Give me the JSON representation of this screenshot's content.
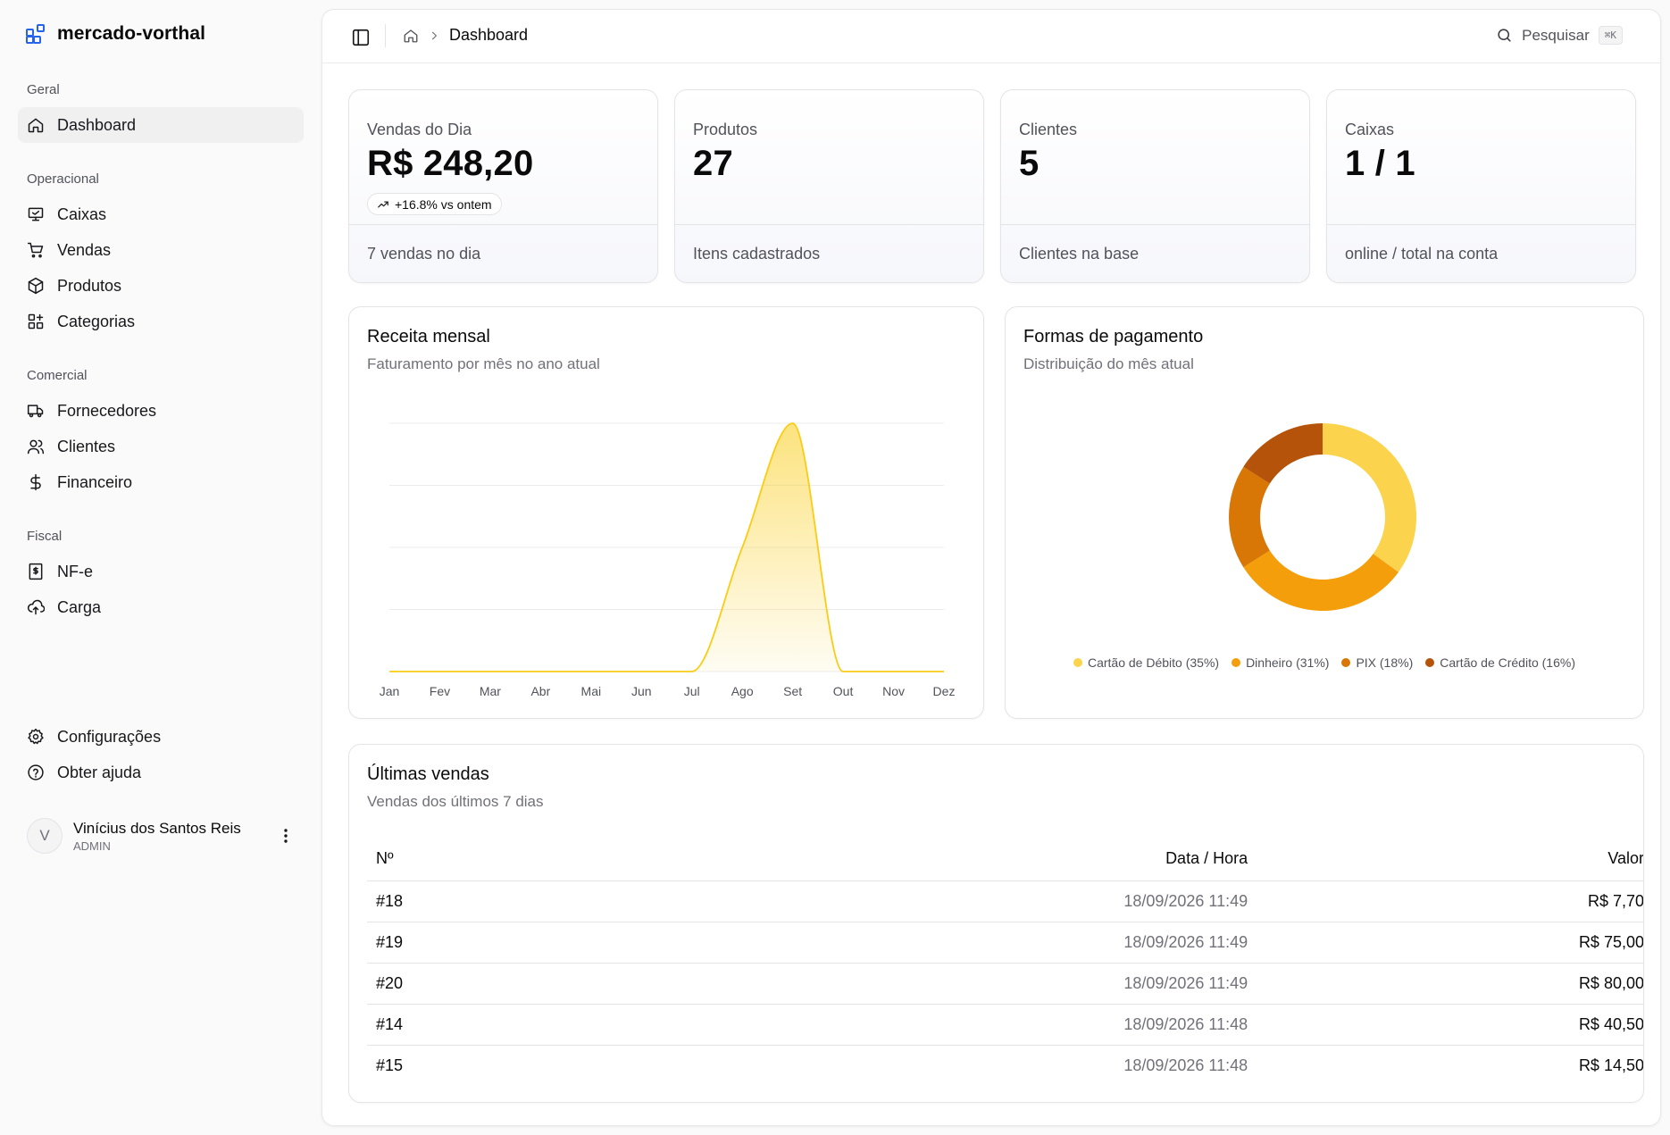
{
  "brand": {
    "name": "mercado-vorthal"
  },
  "sidebar": {
    "groups": [
      {
        "label": "Geral",
        "items": [
          {
            "label": "Dashboard",
            "icon": "home-icon"
          }
        ]
      },
      {
        "label": "Operacional",
        "items": [
          {
            "label": "Caixas",
            "icon": "monitor-icon"
          },
          {
            "label": "Vendas",
            "icon": "cart-icon"
          },
          {
            "label": "Produtos",
            "icon": "box-icon"
          },
          {
            "label": "Categorias",
            "icon": "grid-plus-icon"
          }
        ]
      },
      {
        "label": "Comercial",
        "items": [
          {
            "label": "Fornecedores",
            "icon": "truck-icon"
          },
          {
            "label": "Clientes",
            "icon": "users-icon"
          },
          {
            "label": "Financeiro",
            "icon": "dollar-icon"
          }
        ]
      },
      {
        "label": "Fiscal",
        "items": [
          {
            "label": "NF-e",
            "icon": "receipt-icon"
          },
          {
            "label": "Carga",
            "icon": "cloud-upload-icon"
          }
        ]
      }
    ],
    "footer_items": [
      {
        "label": "Configurações",
        "icon": "gear-icon"
      },
      {
        "label": "Obter ajuda",
        "icon": "help-circle-icon"
      }
    ],
    "user": {
      "initial": "V",
      "name": "Vinícius dos Santos Reis",
      "role": "ADMIN"
    }
  },
  "topbar": {
    "breadcrumb": "Dashboard",
    "search_label": "Pesquisar",
    "shortcut": "⌘K"
  },
  "stats": [
    {
      "label": "Vendas do Dia",
      "value": "R$ 248,20",
      "badge": "+16.8% vs ontem",
      "footer": "7 vendas no dia"
    },
    {
      "label": "Produtos",
      "value": "27",
      "footer": "Itens cadastrados"
    },
    {
      "label": "Clientes",
      "value": "5",
      "footer": "Clientes na base"
    },
    {
      "label": "Caixas",
      "value": "1 / 1",
      "footer": "online / total na conta"
    }
  ],
  "revenue": {
    "title": "Receita mensal",
    "subtitle": "Faturamento por mês no ano atual"
  },
  "payments": {
    "title": "Formas de pagamento",
    "subtitle": "Distribuição do mês atual"
  },
  "chart_data": [
    {
      "type": "area",
      "title": "Receita mensal",
      "categories": [
        "Jan",
        "Fev",
        "Mar",
        "Abr",
        "Mai",
        "Jun",
        "Jul",
        "Ago",
        "Set",
        "Out",
        "Nov",
        "Dez"
      ],
      "values": [
        0,
        0,
        0,
        0,
        0,
        0,
        0,
        100,
        200,
        0,
        0,
        0
      ],
      "ylim": [
        0,
        200
      ],
      "grid": true,
      "color": "#facc15"
    },
    {
      "type": "pie",
      "title": "Formas de pagamento",
      "donut": true,
      "slices": [
        {
          "label": "Cartão de Débito (35%)",
          "value": 35,
          "color": "#fcd34d"
        },
        {
          "label": "Dinheiro (31%)",
          "value": 31,
          "color": "#f59e0b"
        },
        {
          "label": "PIX (18%)",
          "value": 18,
          "color": "#d97706"
        },
        {
          "label": "Cartão de Crédito (16%)",
          "value": 16,
          "color": "#b45309"
        }
      ],
      "legend": "bottom"
    }
  ],
  "sales": {
    "title": "Últimas vendas",
    "subtitle": "Vendas dos últimos 7 dias",
    "columns": [
      "Nº",
      "Data / Hora",
      "Valor"
    ],
    "rows": [
      {
        "num": "#18",
        "date": "18/09/2026 11:49",
        "value": "R$ 7,70"
      },
      {
        "num": "#19",
        "date": "18/09/2026 11:49",
        "value": "R$ 75,00"
      },
      {
        "num": "#20",
        "date": "18/09/2026 11:49",
        "value": "R$ 80,00"
      },
      {
        "num": "#14",
        "date": "18/09/2026 11:48",
        "value": "R$ 40,50"
      },
      {
        "num": "#15",
        "date": "18/09/2026 11:48",
        "value": "R$ 14,50"
      }
    ]
  }
}
